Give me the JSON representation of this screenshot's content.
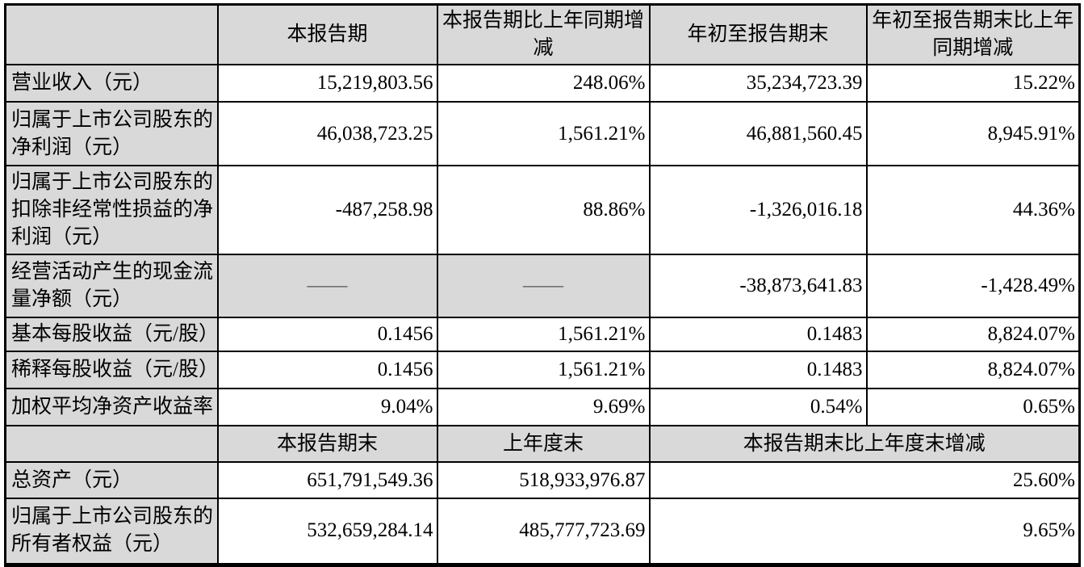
{
  "table": {
    "period_header": [
      "",
      "本报告期",
      "本报告期比上年同期增减",
      "年初至报告期末",
      "年初至报告期末比上年同期增减"
    ],
    "quarter_rows": [
      {
        "label": "营业收入（元）",
        "values": [
          "15,219,803.56",
          "248.06%",
          "35,234,723.39",
          "15.22%"
        ]
      },
      {
        "label": "归属于上市公司股东的净利润（元）",
        "values": [
          "46,038,723.25",
          "1,561.21%",
          "46,881,560.45",
          "8,945.91%"
        ]
      },
      {
        "label": "归属于上市公司股东的扣除非经常性损益的净利润（元）",
        "values": [
          "-487,258.98",
          "88.86%",
          "-1,326,016.18",
          "44.36%"
        ]
      },
      {
        "label": "经营活动产生的现金流量净额（元）",
        "values": [
          "——",
          "——",
          "-38,873,641.83",
          "-1,428.49%"
        ]
      },
      {
        "label": "基本每股收益（元/股）",
        "values": [
          "0.1456",
          "1,561.21%",
          "0.1483",
          "8,824.07%"
        ]
      },
      {
        "label": "稀释每股收益（元/股）",
        "values": [
          "0.1456",
          "1,561.21%",
          "0.1483",
          "8,824.07%"
        ]
      },
      {
        "label": "加权平均净资产收益率",
        "values": [
          "9.04%",
          "9.69%",
          "0.54%",
          "0.65%"
        ]
      }
    ],
    "yearend_header": [
      "",
      "本报告期末",
      "上年度末",
      "本报告期末比上年度末增减"
    ],
    "yearend_rows": [
      {
        "label": "总资产（元）",
        "values": [
          "651,791,549.36",
          "518,933,976.87",
          "25.60%"
        ]
      },
      {
        "label": "归属于上市公司股东的所有者权益（元）",
        "values": [
          "532,659,284.14",
          "485,777,723.69",
          "9.65%"
        ]
      }
    ]
  },
  "colors": {
    "header_bg": "#d9d9d9",
    "border": "#000000",
    "page_bg": "#ffffff"
  }
}
